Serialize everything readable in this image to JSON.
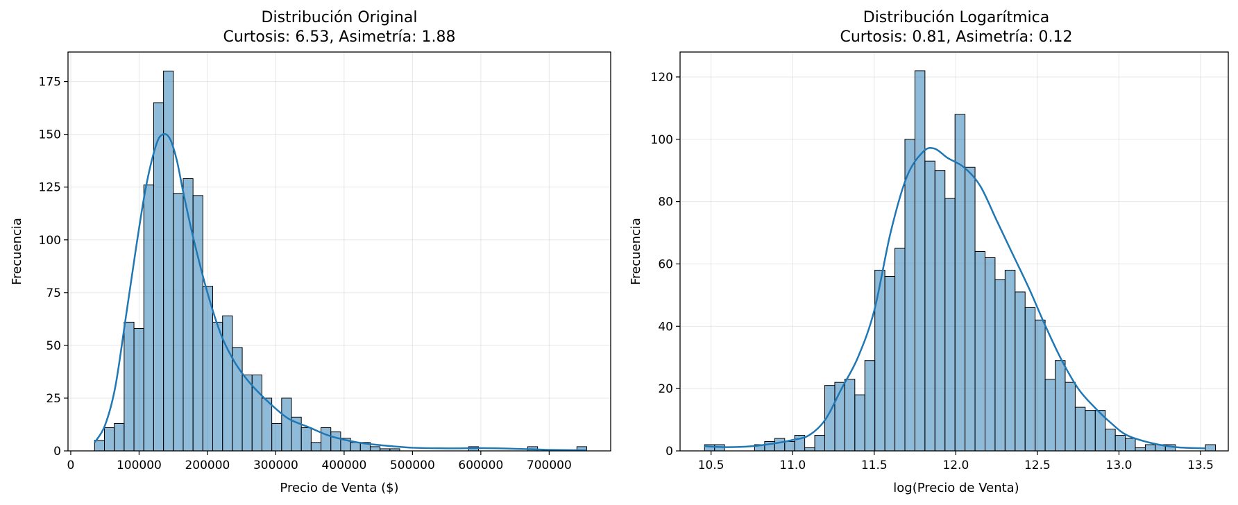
{
  "chart_data": [
    {
      "type": "bar",
      "title_line1": "Distribución Original",
      "title_line2": "Curtosis: 6.53, Asimetría: 1.88",
      "xlabel": "Precio de Venta ($)",
      "ylabel": "Frecuencia",
      "xlim": [
        -4000,
        790000
      ],
      "ylim": [
        0,
        189
      ],
      "xticks": [
        0,
        100000,
        200000,
        300000,
        400000,
        500000,
        600000,
        700000
      ],
      "yticks": [
        0,
        25,
        50,
        75,
        100,
        125,
        150,
        175
      ],
      "grid": true,
      "bin_start": 34900,
      "bin_width": 14402,
      "counts": [
        5,
        11,
        13,
        61,
        58,
        126,
        165,
        180,
        122,
        129,
        121,
        78,
        61,
        64,
        49,
        36,
        36,
        25,
        13,
        25,
        16,
        11,
        4,
        11,
        9,
        6,
        4,
        4,
        2,
        1,
        1,
        0,
        0,
        0,
        0,
        0,
        0,
        0,
        2,
        0,
        0,
        0,
        0,
        0,
        2,
        0,
        0,
        0,
        0,
        2
      ],
      "kde": {
        "x": [
          35000,
          50000,
          65000,
          80000,
          95000,
          110000,
          125000,
          135000,
          145000,
          155000,
          165000,
          180000,
          200000,
          220000,
          240000,
          260000,
          280000,
          300000,
          320000,
          350000,
          380000,
          420000,
          460000,
          500000,
          550000,
          600000,
          650000,
          700000,
          755000
        ],
        "y": [
          4,
          12,
          30,
          62,
          95,
          125,
          145,
          150,
          148,
          138,
          122,
          100,
          75,
          55,
          42,
          33,
          26,
          20,
          15,
          11,
          7,
          4,
          2.5,
          1.5,
          1.2,
          1.3,
          1,
          0.5,
          0.3
        ]
      }
    },
    {
      "type": "bar",
      "title_line1": "Distribución Logarítmica",
      "title_line2": "Curtosis: 0.81, Asimetría: 0.12",
      "xlabel": "log(Precio de Venta)",
      "ylabel": "Frecuencia",
      "xlim": [
        10.31,
        13.67
      ],
      "ylim": [
        0,
        128
      ],
      "xticks": [
        10.5,
        11.0,
        11.5,
        12.0,
        12.5,
        13.0,
        13.5
      ],
      "yticks": [
        0,
        20,
        40,
        60,
        80,
        100,
        120
      ],
      "grid": true,
      "bin_start": 10.46,
      "bin_width": 0.0614,
      "counts": [
        2,
        2,
        0,
        0,
        0,
        2,
        3,
        4,
        3,
        5,
        1,
        5,
        21,
        22,
        23,
        18,
        29,
        58,
        56,
        65,
        100,
        122,
        93,
        90,
        81,
        108,
        91,
        64,
        62,
        55,
        58,
        51,
        46,
        42,
        23,
        29,
        22,
        14,
        13,
        13,
        7,
        5,
        4,
        1,
        2,
        2,
        2,
        0,
        0,
        0,
        2
      ],
      "kde": {
        "x": [
          10.46,
          10.6,
          10.75,
          10.9,
          11.0,
          11.1,
          11.2,
          11.3,
          11.4,
          11.5,
          11.6,
          11.7,
          11.8,
          11.87,
          11.95,
          12.05,
          12.15,
          12.25,
          12.35,
          12.45,
          12.55,
          12.65,
          12.75,
          12.85,
          12.95,
          13.05,
          13.2,
          13.35,
          13.53
        ],
        "y": [
          1.5,
          1.2,
          1.5,
          2.5,
          3.5,
          5,
          10,
          20,
          30,
          45,
          70,
          88,
          96,
          97,
          94,
          91,
          85,
          74,
          63,
          52,
          40,
          29,
          20,
          14,
          9,
          5,
          2.5,
          1.2,
          0.8
        ]
      }
    }
  ]
}
